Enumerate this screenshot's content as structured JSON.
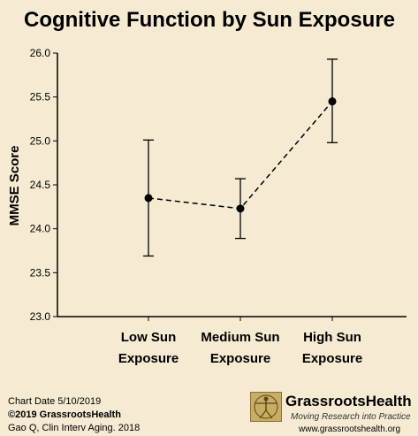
{
  "chart_data": {
    "type": "line",
    "title": "Cognitive Function by Sun Exposure",
    "ylabel": "MMSE Score",
    "xlabel": "",
    "categories": [
      [
        "Low Sun",
        "Exposure"
      ],
      [
        "Medium Sun",
        "Exposure"
      ],
      [
        "High Sun",
        "Exposure"
      ]
    ],
    "series": [
      {
        "values": [
          24.35,
          24.23,
          25.45
        ],
        "lower": [
          23.69,
          23.89,
          24.98
        ],
        "upper": [
          25.01,
          24.57,
          25.93
        ]
      }
    ],
    "ylim": [
      23.0,
      26.0
    ],
    "yticks": [
      "23.0",
      "23.5",
      "24.0",
      "24.5",
      "25.0",
      "25.5",
      "26.0"
    ],
    "grid": false,
    "line_style": "dashed",
    "error_bars": true
  },
  "footer": {
    "chart_date": "Chart Date 5/10/2019",
    "copyright": "©2019 GrassrootsHealth",
    "source": "Gao Q, Clin Interv Aging. 2018"
  },
  "brand": {
    "name": "GrassrootsHealth",
    "tagline": "Moving Research into Practice",
    "url": "www.grassrootshealth.org"
  },
  "colors": {
    "background": "#f6ead2",
    "line": "#000000"
  }
}
